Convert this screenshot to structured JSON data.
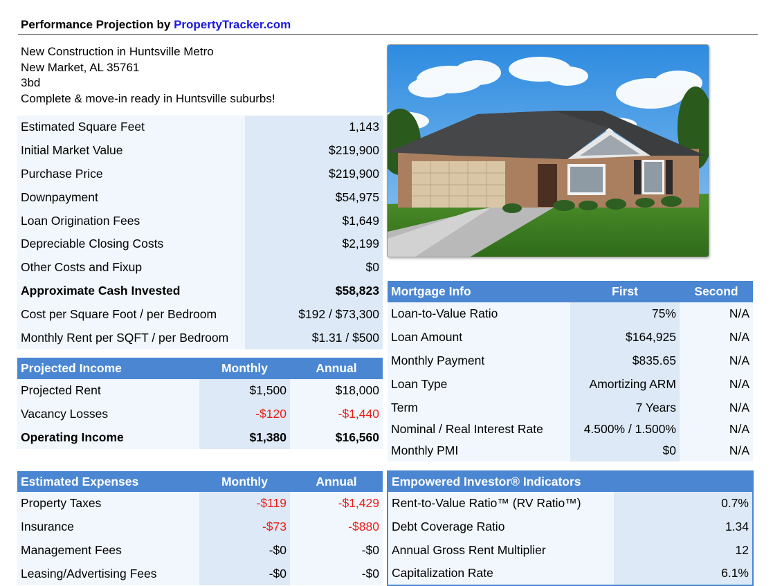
{
  "header": {
    "prefix": "Performance Projection by ",
    "link": "PropertyTracker.com"
  },
  "address": [
    "New Construction in Huntsville Metro",
    "New Market, AL 35761",
    "3bd",
    "Complete & move-in ready in Huntsville suburbs!"
  ],
  "property": {
    "rows": [
      {
        "label": "Estimated Square Feet",
        "value": "1,143"
      },
      {
        "label": "Initial Market Value",
        "value": "$219,900"
      },
      {
        "label": "Purchase Price",
        "value": "$219,900"
      },
      {
        "label": "Downpayment",
        "value": "$54,975"
      },
      {
        "label": "Loan Origination Fees",
        "value": "$1,649"
      },
      {
        "label": "Depreciable Closing Costs",
        "value": "$2,199"
      },
      {
        "label": "Other Costs and Fixup",
        "value": "$0"
      },
      {
        "label": "Approximate Cash Invested",
        "value": "$58,823"
      },
      {
        "label": "Cost per Square Foot / per Bedroom",
        "value": "$192 / $73,300"
      },
      {
        "label": "Monthly Rent per SQFT / per Bedroom",
        "value": "$1.31 / $500"
      }
    ]
  },
  "income": {
    "title": "Projected Income",
    "col1": "Monthly",
    "col2": "Annual",
    "rows": [
      {
        "label": "Projected Rent",
        "monthly": "$1,500",
        "annual": "$18,000"
      },
      {
        "label": "Vacancy Losses",
        "monthly": "-$120",
        "annual": "-$1,440"
      },
      {
        "label": "Operating Income",
        "monthly": "$1,380",
        "annual": "$16,560"
      }
    ]
  },
  "expenses": {
    "title": "Estimated Expenses",
    "col1": "Monthly",
    "col2": "Annual",
    "rows": [
      {
        "label": "Property Taxes",
        "monthly": "-$119",
        "annual": "-$1,429"
      },
      {
        "label": "Insurance",
        "monthly": "-$73",
        "annual": "-$880"
      },
      {
        "label": "Management Fees",
        "monthly": "-$0",
        "annual": "-$0"
      },
      {
        "label": "Leasing/Advertising Fees",
        "monthly": "-$0",
        "annual": "-$0"
      }
    ]
  },
  "mortgage": {
    "title": "Mortgage Info",
    "col1": "First",
    "col2": "Second",
    "rows": [
      {
        "label": "Loan-to-Value Ratio",
        "first": "75%",
        "second": "N/A"
      },
      {
        "label": "Loan Amount",
        "first": "$164,925",
        "second": "N/A"
      },
      {
        "label": "Monthly Payment",
        "first": "$835.65",
        "second": "N/A"
      },
      {
        "label": "Loan Type",
        "first": "Amortizing ARM",
        "second": "N/A"
      },
      {
        "label": "Term",
        "first": "7 Years",
        "second": "N/A"
      },
      {
        "label": "Nominal / Real Interest Rate",
        "first": "4.500% / 1.500%",
        "second": "N/A"
      },
      {
        "label": "Monthly PMI",
        "first": "$0",
        "second": "N/A"
      }
    ]
  },
  "indicators": {
    "title": "Empowered Investor® Indicators",
    "rows": [
      {
        "label": "Rent-to-Value Ratio™ (RV Ratio™)",
        "value": "0.7%"
      },
      {
        "label": "Debt Coverage Ratio",
        "value": "1.34"
      },
      {
        "label": "Annual Gross Rent Multiplier",
        "value": "12"
      },
      {
        "label": "Capitalization Rate",
        "value": "6.1%"
      }
    ]
  },
  "colors": {
    "header": "#4a86d2",
    "light": "#f1f7fd",
    "medium": "#dde9f6",
    "negative": "#e8201a",
    "link": "#1a1adb"
  }
}
